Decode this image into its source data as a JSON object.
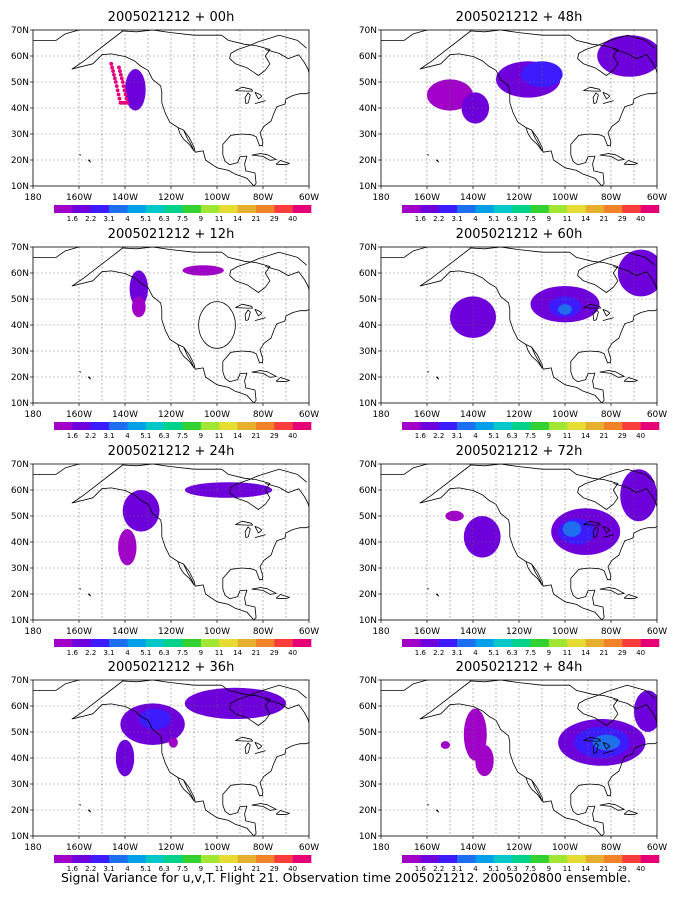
{
  "figure": {
    "caption": "Signal Variance for u,v,T. Flight 21. Observation time 2005021212. 2005020800 ensemble.",
    "colorbar": {
      "labels": [
        "1.6",
        "2.2",
        "3.1",
        "4",
        "5.1",
        "6.3",
        "7.5",
        "9",
        "11",
        "14",
        "21",
        "29",
        "40"
      ],
      "colors": [
        "#a000c8",
        "#6e00dc",
        "#3c1cff",
        "#1e6ef0",
        "#00a0e8",
        "#00c8c8",
        "#00d28c",
        "#32d232",
        "#a0e632",
        "#e6dc32",
        "#e6af2d",
        "#f08228",
        "#fa3c3c",
        "#e60078"
      ]
    },
    "axes": {
      "lon_ticks": [
        "180",
        "160W",
        "140W",
        "120W",
        "100W",
        "80W",
        "60W"
      ],
      "lat_ticks": [
        "10N",
        "20N",
        "30N",
        "40N",
        "50N",
        "60N",
        "70N"
      ]
    },
    "flight_track_color": "#e60078",
    "coast_color": "#000000"
  },
  "chart_data": [
    {
      "type": "heatmap",
      "title": "2005021212 + 00h",
      "blobs": [
        {
          "lon": -135.5,
          "lat": 47,
          "rlon": 4.5,
          "rlat": 8,
          "level": 1
        }
      ],
      "flight_track": [
        [
          -146,
          57
        ],
        [
          -144,
          50
        ],
        [
          -142,
          42
        ],
        [
          -139,
          42
        ],
        [
          -141,
          50
        ],
        [
          -143,
          57
        ]
      ],
      "circle": null
    },
    {
      "type": "heatmap",
      "title": "2005021212 + 48h",
      "blobs": [
        {
          "lon": -150,
          "lat": 45,
          "rlon": 10,
          "rlat": 6,
          "level": 0
        },
        {
          "lon": -139,
          "lat": 40,
          "rlon": 6,
          "rlat": 6,
          "level": 1
        },
        {
          "lon": -116,
          "lat": 51,
          "rlon": 14,
          "rlat": 7,
          "level": 1
        },
        {
          "lon": -110,
          "lat": 53,
          "rlon": 9,
          "rlat": 5,
          "level": 2
        },
        {
          "lon": -72,
          "lat": 60,
          "rlon": 14,
          "rlat": 8,
          "level": 1
        }
      ],
      "flight_track": [],
      "circle": null
    },
    {
      "type": "heatmap",
      "title": "2005021212 + 12h",
      "blobs": [
        {
          "lon": -134,
          "lat": 54,
          "rlon": 4,
          "rlat": 7,
          "level": 1
        },
        {
          "lon": -134,
          "lat": 47,
          "rlon": 3,
          "rlat": 4,
          "level": 0
        },
        {
          "lon": -106,
          "lat": 61,
          "rlon": 9,
          "rlat": 2,
          "level": 0
        }
      ],
      "flight_track": [],
      "circle": {
        "lon": -100,
        "lat": 40,
        "rlon": 8,
        "rlat": 9
      }
    },
    {
      "type": "heatmap",
      "title": "2005021212 + 60h",
      "blobs": [
        {
          "lon": -140,
          "lat": 43,
          "rlon": 10,
          "rlat": 8,
          "level": 1
        },
        {
          "lon": -100,
          "lat": 48,
          "rlon": 15,
          "rlat": 7,
          "level": 1
        },
        {
          "lon": -100,
          "lat": 47,
          "rlon": 7,
          "rlat": 4,
          "level": 2
        },
        {
          "lon": -100,
          "lat": 46,
          "rlon": 3,
          "rlat": 2,
          "level": 3
        },
        {
          "lon": -67,
          "lat": 60,
          "rlon": 10,
          "rlat": 9,
          "level": 1
        }
      ],
      "flight_track": [],
      "circle": null
    },
    {
      "type": "heatmap",
      "title": "2005021212 + 24h",
      "blobs": [
        {
          "lon": -133,
          "lat": 52,
          "rlon": 8,
          "rlat": 8,
          "level": 1
        },
        {
          "lon": -139,
          "lat": 38,
          "rlon": 4,
          "rlat": 7,
          "level": 0
        },
        {
          "lon": -95,
          "lat": 60,
          "rlon": 19,
          "rlat": 3,
          "level": 1
        }
      ],
      "flight_track": [],
      "circle": null
    },
    {
      "type": "heatmap",
      "title": "2005021212 + 72h",
      "blobs": [
        {
          "lon": -148,
          "lat": 50,
          "rlon": 4,
          "rlat": 2,
          "level": 0
        },
        {
          "lon": -136,
          "lat": 42,
          "rlon": 8,
          "rlat": 8,
          "level": 1
        },
        {
          "lon": -91,
          "lat": 44,
          "rlon": 15,
          "rlat": 9,
          "level": 1
        },
        {
          "lon": -95,
          "lat": 44,
          "rlon": 8,
          "rlat": 5,
          "level": 2
        },
        {
          "lon": -97,
          "lat": 45,
          "rlon": 4,
          "rlat": 3,
          "level": 3
        },
        {
          "lon": -68,
          "lat": 58,
          "rlon": 8,
          "rlat": 10,
          "level": 1
        }
      ],
      "flight_track": [],
      "circle": null
    },
    {
      "type": "heatmap",
      "title": "2005021212 + 36h",
      "blobs": [
        {
          "lon": -128,
          "lat": 53,
          "rlon": 14,
          "rlat": 8,
          "level": 1
        },
        {
          "lon": -127,
          "lat": 55,
          "rlon": 7,
          "rlat": 4,
          "level": 2
        },
        {
          "lon": -140,
          "lat": 40,
          "rlon": 4,
          "rlat": 7,
          "level": 1
        },
        {
          "lon": -92,
          "lat": 61,
          "rlon": 22,
          "rlat": 6,
          "level": 1
        },
        {
          "lon": -119,
          "lat": 46,
          "rlon": 2,
          "rlat": 2,
          "level": 0
        }
      ],
      "flight_track": [],
      "circle": null
    },
    {
      "type": "heatmap",
      "title": "2005021212 + 84h",
      "blobs": [
        {
          "lon": -152,
          "lat": 45,
          "rlon": 2,
          "rlat": 1.5,
          "level": 0
        },
        {
          "lon": -139,
          "lat": 49,
          "rlon": 5,
          "rlat": 10,
          "level": 0
        },
        {
          "lon": -135,
          "lat": 39,
          "rlon": 4,
          "rlat": 6,
          "level": 0
        },
        {
          "lon": -84,
          "lat": 46,
          "rlon": 19,
          "rlat": 9,
          "level": 1
        },
        {
          "lon": -84,
          "lat": 46,
          "rlon": 12,
          "rlat": 6,
          "level": 2
        },
        {
          "lon": -82,
          "lat": 46,
          "rlon": 6,
          "rlat": 3,
          "level": 3
        },
        {
          "lon": -64,
          "lat": 58,
          "rlon": 6,
          "rlat": 8,
          "level": 1
        }
      ],
      "flight_track": [],
      "circle": null
    }
  ]
}
